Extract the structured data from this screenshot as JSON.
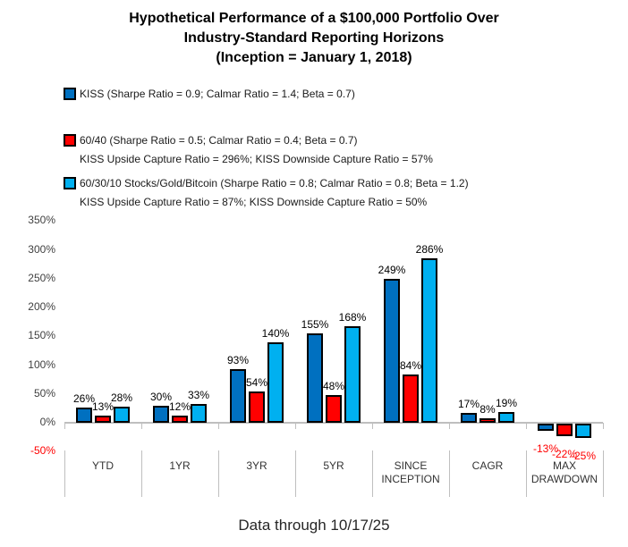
{
  "title": "Hypothetical Performance of a $100,000 Portfolio Over\nIndustry-Standard Reporting Horizons\n(Inception = January 1, 2018)",
  "legend": {
    "items": [
      {
        "name": "KISS",
        "swatch_color": "#0070C0",
        "label": "KISS (Sharpe Ratio = 0.9; Calmar Ratio = 1.4; Beta = 0.7)",
        "subline": ""
      },
      {
        "name": "60/40",
        "swatch_color": "#FF0000",
        "label": "60/40 (Sharpe Ratio = 0.5; Calmar Ratio = 0.4; Beta = 0.7)",
        "subline": "KISS Upside Capture Ratio = 296%; KISS Downside Capture Ratio = 57%"
      },
      {
        "name": "60/30/10 Stocks/Gold/Bitcoin",
        "swatch_color": "#00B0F0",
        "label": "60/30/10 Stocks/Gold/Bitcoin (Sharpe Ratio = 0.8; Calmar Ratio = 0.8; Beta = 1.2)",
        "subline": "KISS Upside Capture Ratio = 87%; KISS Downside Capture Ratio = 50%"
      }
    ]
  },
  "chart_data": {
    "type": "bar",
    "title": "Hypothetical Performance of a $100,000 Portfolio Over Industry-Standard Reporting Horizons (Inception = January 1, 2018)",
    "categories": [
      "YTD",
      "1YR",
      "3YR",
      "5YR",
      "SINCE INCEPTION",
      "CAGR",
      "MAX DRAWDOWN"
    ],
    "series": [
      {
        "name": "KISS",
        "color": "#0070C0",
        "values": [
          26,
          30,
          93,
          155,
          249,
          17,
          -13
        ],
        "labels": [
          "26%",
          "30%",
          "93%",
          "155%",
          "249%",
          "17%",
          "-13%"
        ]
      },
      {
        "name": "60/40",
        "color": "#FF0000",
        "values": [
          13,
          12,
          54,
          48,
          84,
          8,
          -22
        ],
        "labels": [
          "13%",
          "12%",
          "54%",
          "48%",
          "84%",
          "8%",
          "-22%"
        ]
      },
      {
        "name": "60/30/10 Stocks/Gold/Bitcoin",
        "color": "#00B0F0",
        "values": [
          28,
          33,
          140,
          168,
          286,
          19,
          -25
        ],
        "labels": [
          "28%",
          "33%",
          "140%",
          "168%",
          "286%",
          "19%",
          "-25%"
        ]
      }
    ],
    "y_axis": {
      "min": -50,
      "max": 350,
      "step": 50,
      "tick_suffix": "%",
      "tick_labels": [
        "350%",
        "300%",
        "250%",
        "200%",
        "150%",
        "100%",
        "50%",
        "0%",
        "-50%"
      ],
      "negative_tick_color": "#FF0000",
      "axis_color": "#BFBFBF"
    },
    "grid": false,
    "legend_position": "top-left",
    "negative_label_color": "#FF0000"
  },
  "footer": "Data through 10/17/25"
}
